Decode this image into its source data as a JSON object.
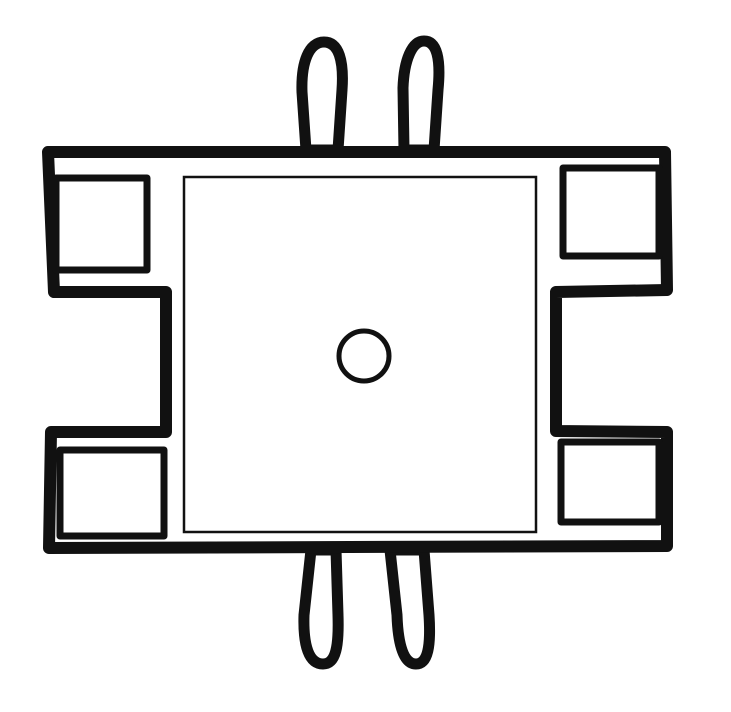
{
  "diagram": {
    "colors": {
      "stroke": "#111111",
      "fill": "#ffffff",
      "background": "#ffffff"
    },
    "parts": [
      "top-left-tab",
      "top-right-tab",
      "bottom-left-tab",
      "bottom-right-tab",
      "central-square-panel",
      "center-hole",
      "left-upper-pocket",
      "left-lower-pocket",
      "right-upper-pocket",
      "right-lower-pocket"
    ]
  }
}
